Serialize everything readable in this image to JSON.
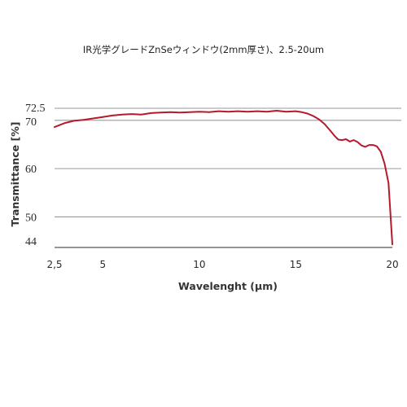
{
  "title": "IR光学グレードZnSeウィンドウ(2mm厚さ)、2.5-20um",
  "chart_data": {
    "type": "line",
    "xlabel": "Wavelenght (μm)",
    "ylabel": "Transmittance [%]",
    "xlim": [
      2.5,
      20
    ],
    "ylim": [
      44,
      72.5
    ],
    "x_ticks": [
      {
        "value": 2.5,
        "label": "2,5"
      },
      {
        "value": 5,
        "label": "5"
      },
      {
        "value": 10,
        "label": "10"
      },
      {
        "value": 15,
        "label": "15"
      },
      {
        "value": 20,
        "label": "20"
      }
    ],
    "y_ticks": [
      {
        "value": 72.5,
        "label": "72.5"
      },
      {
        "value": 70,
        "label": "70"
      },
      {
        "value": 60,
        "label": "60"
      },
      {
        "value": 50,
        "label": "50"
      },
      {
        "value": 44,
        "label": "44"
      }
    ],
    "gridlines_y": [
      72.5,
      70,
      60,
      50
    ],
    "grid": true,
    "series": [
      {
        "color": "#b5192b",
        "x": [
          2.5,
          3,
          3.5,
          4,
          4.5,
          5,
          5.5,
          6,
          6.5,
          7,
          7.5,
          8,
          8.5,
          9,
          9.5,
          10,
          10.5,
          11,
          11.5,
          12,
          12.5,
          13,
          13.5,
          14,
          14.5,
          15,
          15.3,
          15.6,
          15.9,
          16.2,
          16.5,
          16.8,
          17,
          17.2,
          17.4,
          17.6,
          17.8,
          18,
          18.2,
          18.4,
          18.6,
          18.8,
          19,
          19.2,
          19.4,
          19.6,
          19.8,
          20
        ],
        "y": [
          68.6,
          69.4,
          69.9,
          70.1,
          70.4,
          70.7,
          71.0,
          71.2,
          71.3,
          71.2,
          71.5,
          71.6,
          71.7,
          71.6,
          71.7,
          71.8,
          71.7,
          71.9,
          71.8,
          71.9,
          71.8,
          71.9,
          71.8,
          72.0,
          71.8,
          71.9,
          71.7,
          71.4,
          70.9,
          70.2,
          69.2,
          67.8,
          66.8,
          66.0,
          65.9,
          66.1,
          65.6,
          65.9,
          65.5,
          64.8,
          64.5,
          64.9,
          64.9,
          64.6,
          63.5,
          61.0,
          57.0,
          44.3
        ]
      }
    ]
  }
}
